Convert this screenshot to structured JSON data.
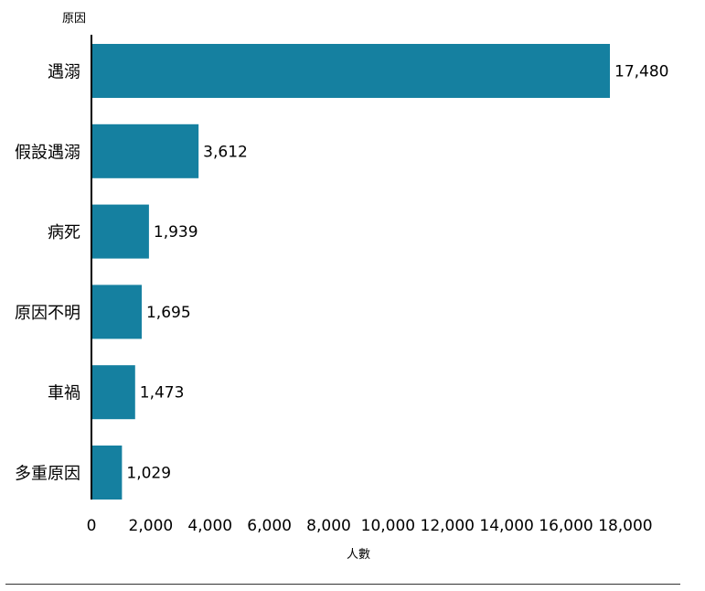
{
  "chart_data": {
    "type": "bar",
    "orientation": "horizontal",
    "ylabel": "原因",
    "xlabel": "人數",
    "categories": [
      "遇溺",
      "假設遇溺",
      "病死",
      "原因不明",
      "車禍",
      "多重原因"
    ],
    "values": [
      17480,
      3612,
      1939,
      1695,
      1473,
      1029
    ],
    "value_labels": [
      "17,480",
      "3,612",
      "1,939",
      "1,695",
      "1,473",
      "1,029"
    ],
    "xlim": [
      0,
      18000
    ],
    "x_ticks": [
      0,
      2000,
      4000,
      6000,
      8000,
      10000,
      12000,
      14000,
      16000,
      18000
    ],
    "x_tick_labels": [
      "0",
      "2,000",
      "4,000",
      "6,000",
      "8,000",
      "10,000",
      "12,000",
      "14,000",
      "16,000",
      "18,000"
    ],
    "grid": false,
    "bar_color": "#1580a0"
  }
}
